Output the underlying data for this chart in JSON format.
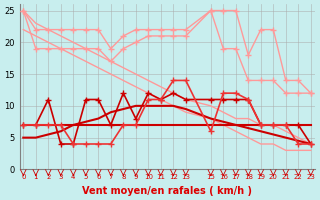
{
  "x": [
    0,
    1,
    2,
    3,
    4,
    5,
    6,
    7,
    8,
    9,
    10,
    11,
    12,
    13,
    15,
    16,
    17,
    18,
    19,
    20,
    21,
    22,
    23
  ],
  "line1": [
    25,
    22,
    22,
    22,
    22,
    22,
    22,
    19,
    21,
    22,
    22,
    22,
    22,
    22,
    25,
    25,
    25,
    18,
    22,
    22,
    14,
    14,
    12
  ],
  "line2": [
    25,
    19,
    19,
    19,
    19,
    19,
    19,
    17,
    19,
    20,
    21,
    21,
    21,
    21,
    25,
    19,
    19,
    14,
    14,
    14,
    12,
    12,
    12
  ],
  "line3_reg1": [
    25,
    23,
    22,
    21,
    20,
    19,
    18,
    17,
    16,
    15,
    14,
    13,
    12,
    11,
    10,
    9,
    8,
    8,
    7,
    7,
    6,
    5,
    4
  ],
  "line3_reg2": [
    22,
    21,
    20,
    19,
    18,
    17,
    16,
    15,
    14,
    13,
    12,
    11,
    10,
    9,
    8,
    7,
    6,
    5,
    4,
    4,
    3,
    3,
    3
  ],
  "line4": [
    7,
    7,
    11,
    4,
    4,
    11,
    11,
    7,
    12,
    8,
    12,
    11,
    12,
    11,
    11,
    11,
    11,
    11,
    7,
    7,
    7,
    7,
    4
  ],
  "line5": [
    7,
    7,
    7,
    7,
    4,
    4,
    4,
    4,
    7,
    7,
    11,
    11,
    14,
    14,
    6,
    12,
    12,
    11,
    7,
    7,
    7,
    4,
    4
  ],
  "line6_smooth": [
    5,
    5,
    5.5,
    6,
    7,
    7.5,
    8,
    9,
    9.5,
    10,
    10,
    10,
    10,
    9.5,
    8,
    7.5,
    7,
    6.5,
    6,
    5.5,
    5,
    4.5,
    4
  ],
  "line7_flat": [
    7,
    7,
    7,
    7,
    7,
    7,
    7,
    7,
    7,
    7,
    7,
    7,
    7,
    7,
    7,
    7,
    7,
    7,
    7,
    7,
    7,
    7,
    7
  ],
  "bg_color": "#c8eeee",
  "grid_color": "#aaaaaa",
  "line_light_pink": "#ff9999",
  "line_dark_red": "#cc0000",
  "line_medium_red": "#ee3333",
  "xlabel": "Vent moyen/en rafales ( km/h )",
  "xlabel_color": "#dd0000",
  "xticks": [
    0,
    1,
    2,
    3,
    4,
    5,
    6,
    7,
    8,
    9,
    10,
    11,
    12,
    13,
    15,
    16,
    17,
    18,
    19,
    20,
    21,
    22,
    23
  ],
  "yticks": [
    0,
    5,
    10,
    15,
    20,
    25
  ],
  "ylim": [
    0,
    26
  ],
  "xlim": [
    -0.3,
    23.3
  ]
}
